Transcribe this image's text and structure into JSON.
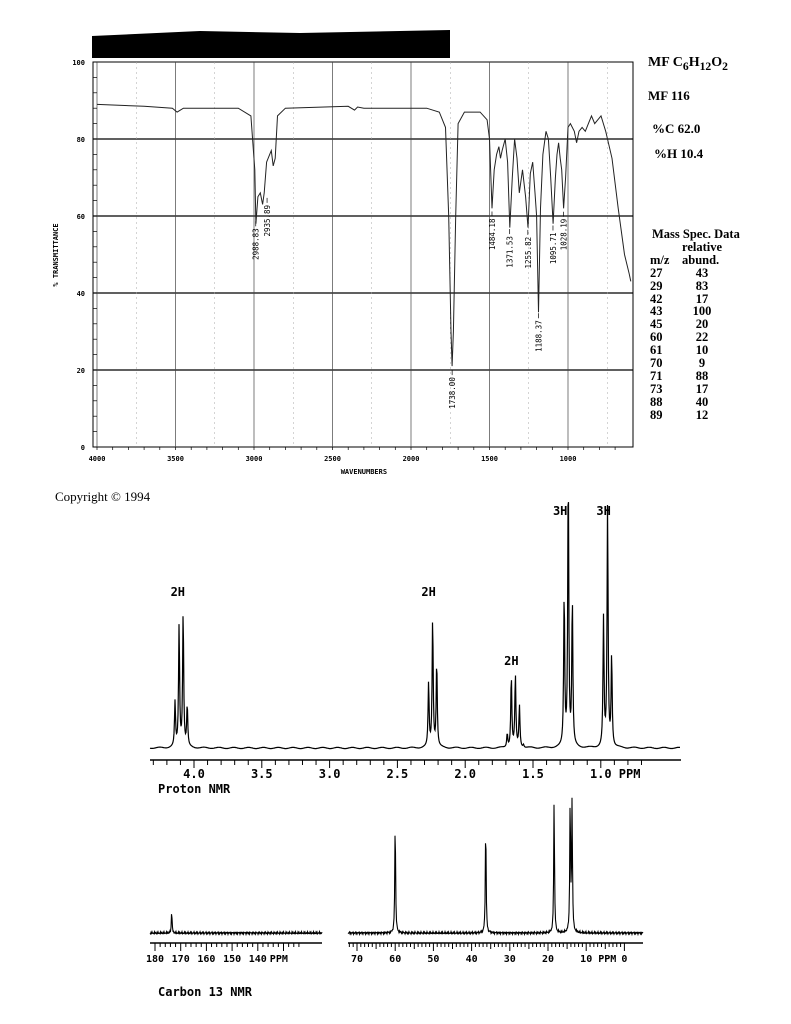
{
  "header": {
    "formula_label": "MF C6H12O2",
    "formula_parts": [
      "MF C",
      "6",
      "H",
      "12",
      "O",
      "2"
    ],
    "mass_label": "MF 116",
    "percent_c": "%C 62.0",
    "percent_h": "%H 10.4"
  },
  "mass_spec": {
    "title": "Mass Spec. Data",
    "col1": "m/z",
    "col2_line1": "relative",
    "col2_line2": "abund.",
    "rows": [
      {
        "mz": "27",
        "abund": "43"
      },
      {
        "mz": "29",
        "abund": "83"
      },
      {
        "mz": "42",
        "abund": "17"
      },
      {
        "mz": "43",
        "abund": "100"
      },
      {
        "mz": "45",
        "abund": "20"
      },
      {
        "mz": "60",
        "abund": "22"
      },
      {
        "mz": "61",
        "abund": "10"
      },
      {
        "mz": "70",
        "abund": "9"
      },
      {
        "mz": "71",
        "abund": "88"
      },
      {
        "mz": "73",
        "abund": "17"
      },
      {
        "mz": "88",
        "abund": "40"
      },
      {
        "mz": "89",
        "abund": "12"
      }
    ]
  },
  "copyright": "Copyright © 1994",
  "chart_data": [
    {
      "type": "line",
      "title": "",
      "xlabel": "WAVENUMBERS",
      "ylabel": "% TRANSMITTANCE",
      "xlim": [
        4000,
        600
      ],
      "ylim": [
        0,
        100
      ],
      "xticks": [
        "4000",
        "3500",
        "3000",
        "2500",
        "2000",
        "1500",
        "1000"
      ],
      "yticks": [
        "100",
        "80",
        "60",
        "40",
        "20",
        "0"
      ],
      "grid": true,
      "x": [
        4000,
        3700,
        3520,
        3490,
        3450,
        3100,
        3020,
        2995,
        2988,
        2975,
        2960,
        2945,
        2935,
        2920,
        2900,
        2890,
        2878,
        2865,
        2850,
        2800,
        2400,
        2360,
        2340,
        2300,
        1900,
        1820,
        1780,
        1760,
        1745,
        1738,
        1730,
        1715,
        1700,
        1660,
        1560,
        1515,
        1500,
        1484,
        1470,
        1455,
        1440,
        1430,
        1420,
        1400,
        1385,
        1371,
        1355,
        1340,
        1325,
        1310,
        1290,
        1270,
        1255,
        1240,
        1225,
        1210,
        1200,
        1188,
        1175,
        1160,
        1140,
        1125,
        1110,
        1095,
        1080,
        1070,
        1060,
        1050,
        1040,
        1028,
        1015,
        1000,
        985,
        960,
        945,
        930,
        910,
        890,
        870,
        850,
        830,
        810,
        790,
        760,
        720,
        680,
        640,
        610,
        600
      ],
      "y": [
        89,
        88.5,
        88,
        87,
        88,
        88,
        86,
        72,
        58,
        65,
        66,
        63,
        66,
        74,
        76,
        77,
        73,
        75,
        86,
        88,
        88.5,
        87.5,
        88.3,
        88,
        88,
        87,
        83,
        60,
        30,
        21,
        30,
        60,
        84,
        87,
        87,
        85,
        80,
        62,
        72,
        76,
        78,
        75,
        77,
        80,
        74,
        57,
        70,
        80,
        75,
        66,
        72,
        65,
        57,
        71,
        74,
        66,
        60,
        35,
        62,
        76,
        82,
        80,
        70,
        58,
        70,
        76,
        79,
        75,
        72,
        62,
        70,
        83,
        84,
        82,
        79,
        82,
        83,
        82,
        84,
        86,
        84,
        85,
        86,
        82,
        75,
        62,
        50,
        45,
        43
      ],
      "peak_labels": [
        "2988.83",
        "2935.89",
        "1738.00",
        "1484.18",
        "1371.53",
        "1255.82",
        "1188.37",
        "1095.71",
        "1028.19"
      ],
      "peak_label_values": [
        2988.83,
        2935.89,
        1738.0,
        1484.18,
        1371.53,
        1255.82,
        1188.37,
        1095.71,
        1028.19
      ]
    },
    {
      "type": "line",
      "title": "Proton NMR",
      "xlabel": "PPM",
      "xlim": [
        4.3,
        0.7
      ],
      "xticks": [
        "4.0",
        "3.5",
        "3.0",
        "2.5",
        "2.0",
        "1.5",
        "1.0"
      ],
      "peaks_ppm": [
        4.14,
        4.11,
        4.08,
        4.05,
        2.27,
        2.24,
        2.21,
        1.69,
        1.66,
        1.63,
        1.6,
        1.57,
        1.27,
        1.24,
        1.21,
        0.98,
        0.95,
        0.92
      ],
      "peaks_rel_height": [
        16,
        44,
        49,
        15,
        23,
        47,
        31,
        5,
        26,
        26,
        15,
        1,
        55,
        100,
        53,
        46,
        87,
        33
      ],
      "integrals": [
        {
          "ppm": 4.09,
          "label": "2H"
        },
        {
          "ppm": 2.24,
          "label": "2H"
        },
        {
          "ppm": 1.63,
          "label": "2H"
        },
        {
          "ppm": 1.27,
          "label": "3H"
        },
        {
          "ppm": 0.95,
          "label": "3H"
        }
      ]
    },
    {
      "type": "line",
      "title": "Carbon 13 NMR",
      "xlabel": "PPM",
      "panels": [
        {
          "xlim": [
            181,
            117
          ],
          "xticks": [
            "180",
            "170",
            "160",
            "150",
            "140"
          ]
        },
        {
          "xlim": [
            72.5,
            -1
          ],
          "xticks": [
            "70",
            "60",
            "50",
            "40",
            "30",
            "20",
            "10",
            "0"
          ]
        }
      ],
      "peaks_ppm": [
        173.5,
        60.0,
        36.3,
        18.4,
        14.2,
        13.7
      ],
      "peaks_rel_height": [
        18,
        85,
        83,
        100,
        98,
        96
      ]
    }
  ]
}
